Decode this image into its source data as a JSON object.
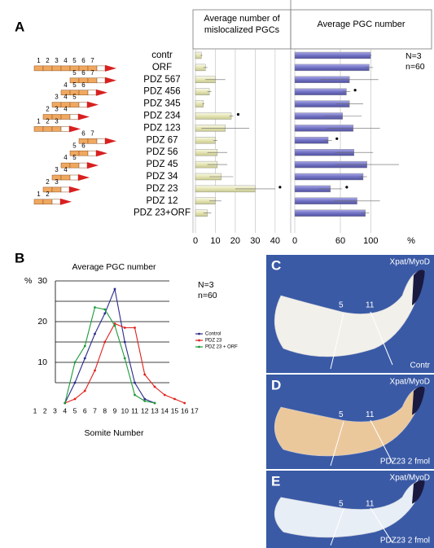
{
  "panel_labels": [
    "A",
    "B",
    "C",
    "D",
    "E"
  ],
  "constructs": [
    {
      "domains": [
        1,
        2,
        3,
        4,
        5,
        6,
        7
      ]
    },
    {
      "domains": [
        5,
        6,
        7
      ]
    },
    {
      "domains": [
        4,
        5,
        6
      ]
    },
    {
      "domains": [
        3,
        4,
        5
      ]
    },
    {
      "domains": [
        2,
        3,
        4
      ]
    },
    {
      "domains": [
        1,
        2,
        3
      ]
    },
    {
      "domains": [
        6,
        7
      ]
    },
    {
      "domains": [
        5,
        6
      ]
    },
    {
      "domains": [
        4,
        5
      ]
    },
    {
      "domains": [
        3,
        4
      ]
    },
    {
      "domains": [
        2,
        3
      ]
    },
    {
      "domains": [
        1,
        2
      ]
    }
  ],
  "images": [
    {
      "stain": "Xpat/MyoD",
      "somites": [
        5,
        11
      ],
      "condition": "Contr"
    },
    {
      "stain": "Xpat/MyoD",
      "somites": [
        5,
        11
      ],
      "condition": "PDZ23 2 fmol"
    },
    {
      "stain": "Xpat/MyoD",
      "somites": [
        5,
        11
      ],
      "condition": "PDZ23 2 fmol"
    }
  ],
  "chart_data": [
    {
      "type": "hbar",
      "title": [
        "Average number of",
        "mislocalized PGCs"
      ],
      "categories": [
        "contr",
        "ORF",
        "PDZ 567",
        "PDZ 456",
        "PDZ 345",
        "PDZ 234",
        "PDZ 123",
        "PDZ 67",
        "PDZ 56",
        "PDZ 45",
        "PDZ 34",
        "PDZ 23",
        "PDZ 12",
        "PDZ 23+ORF"
      ],
      "values": [
        3,
        5,
        10,
        7,
        4,
        18,
        15,
        10,
        11,
        11,
        13,
        30,
        10,
        6
      ],
      "errors": [
        0.5,
        1,
        5,
        1,
        0.5,
        1,
        12,
        1,
        5,
        5,
        6,
        10,
        3,
        2
      ],
      "significant": [
        false,
        false,
        false,
        false,
        false,
        true,
        false,
        false,
        false,
        false,
        false,
        true,
        false,
        false
      ],
      "color": "#e4e4b4",
      "xlim": [
        0,
        47
      ],
      "xticks": [
        0,
        10,
        20,
        30,
        40
      ],
      "grid": true
    },
    {
      "type": "hbar",
      "title": [
        "Average PGC number"
      ],
      "values": [
        100,
        98,
        72,
        68,
        72,
        63,
        77,
        44,
        78,
        95,
        90,
        47,
        82,
        93
      ],
      "errors": [
        1,
        5,
        38,
        5,
        18,
        25,
        35,
        5,
        25,
        42,
        5,
        15,
        30,
        5
      ],
      "significant": [
        false,
        false,
        false,
        true,
        false,
        false,
        false,
        true,
        false,
        false,
        false,
        true,
        false,
        false
      ],
      "color": "#7272c4",
      "xlim": [
        0,
        180
      ],
      "xticks": [
        0,
        60,
        100
      ],
      "xlabel": "%",
      "annotations": [
        "N=3",
        "n=60"
      ],
      "grid": true
    },
    {
      "type": "line",
      "title": "Average PGC number",
      "xlabel": "Somite Number",
      "ylabel": "%",
      "categories": [
        1,
        2,
        3,
        4,
        5,
        6,
        7,
        8,
        9,
        10,
        11,
        12,
        13,
        14,
        15,
        16,
        17
      ],
      "series": [
        {
          "name": "Control",
          "color": "#2a2a8c",
          "values": [
            null,
            null,
            null,
            0,
            5,
            11,
            17,
            22,
            28,
            15,
            5,
            1,
            0,
            null,
            null,
            null,
            null
          ]
        },
        {
          "name": "PDZ 23",
          "color": "#e0201c",
          "values": [
            null,
            null,
            null,
            0,
            1,
            3,
            8,
            15,
            19.5,
            18.5,
            18.5,
            7,
            4,
            2,
            1,
            0,
            null
          ]
        },
        {
          "name": "PDZ 23 + ORF",
          "color": "#1c9a3a",
          "values": [
            null,
            null,
            null,
            0,
            10,
            14,
            23.5,
            23,
            19,
            11,
            2,
            0.5,
            0,
            null,
            null,
            null,
            null
          ]
        }
      ],
      "ylim": [
        0,
        30
      ],
      "yticks": [
        10,
        20,
        30
      ],
      "minor_yticks": [
        5,
        15,
        25
      ],
      "annotations": [
        "N=3",
        "n=60"
      ],
      "legend": "right",
      "grid": true
    }
  ]
}
